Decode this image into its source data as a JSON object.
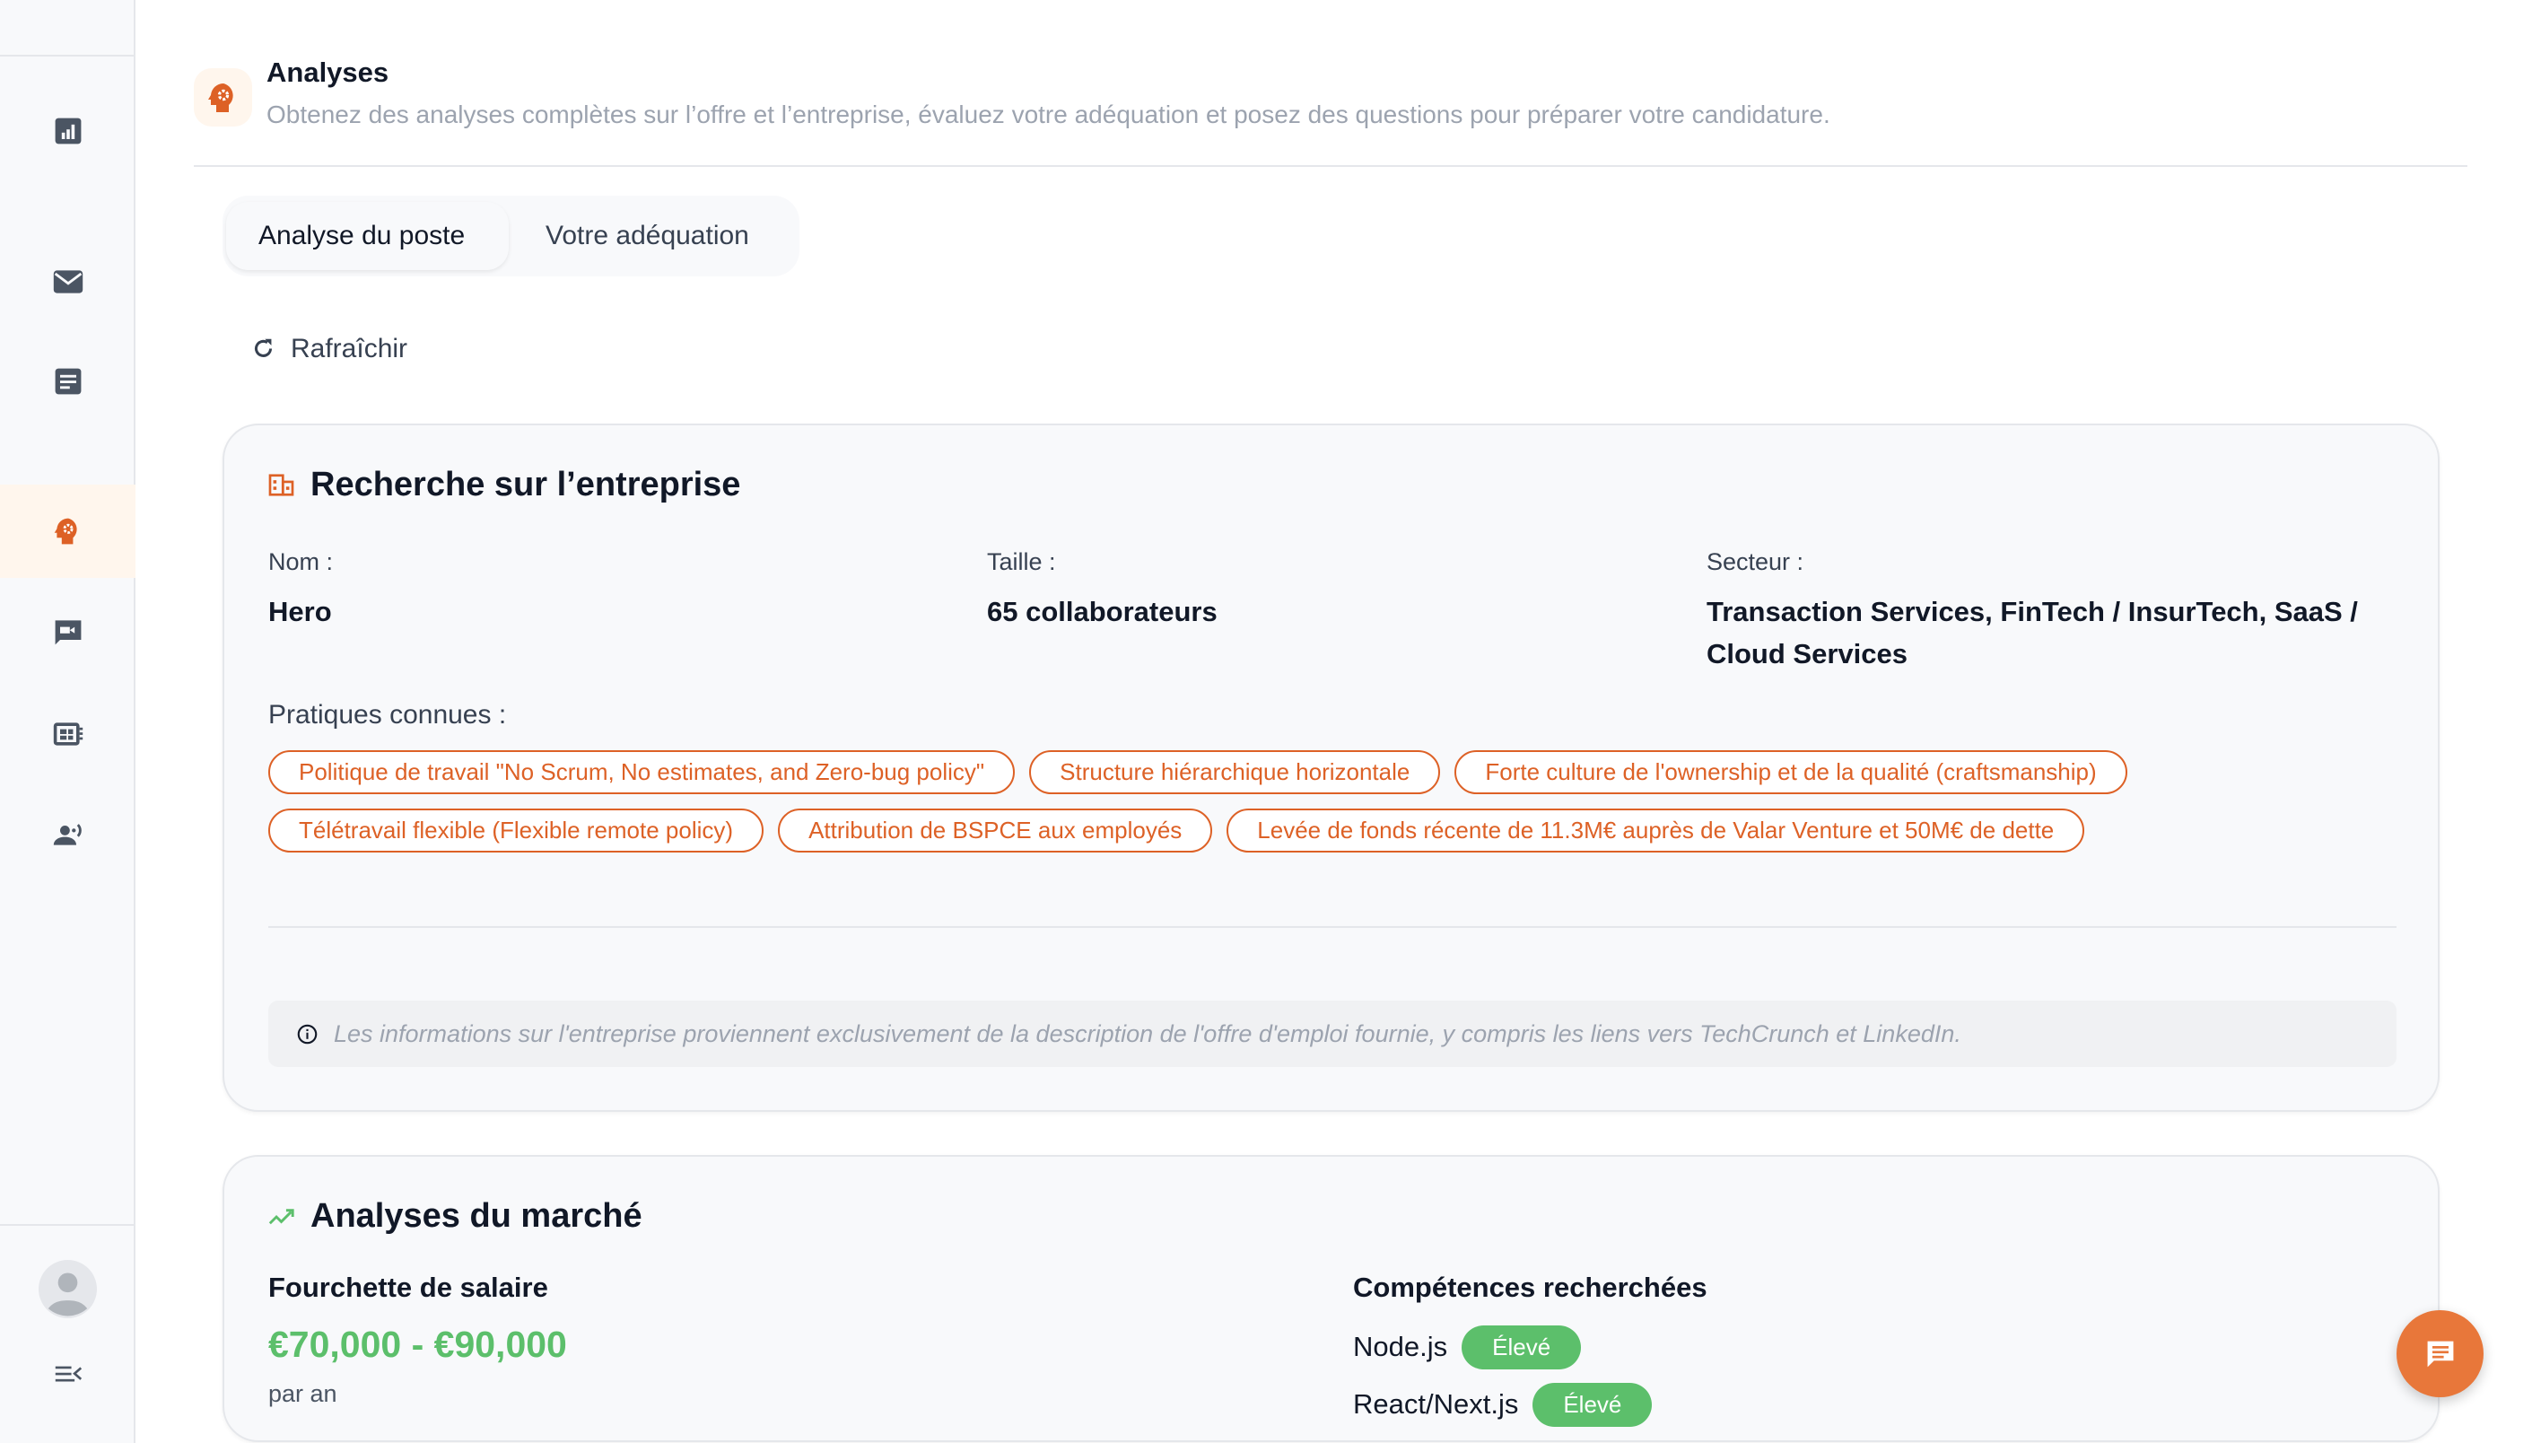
{
  "colors": {
    "accent": "#dd6126",
    "success": "#5cbf6b",
    "chat_button": "#e8773a"
  },
  "sidebar": {
    "items": [
      {
        "icon": "analytics-icon"
      },
      {
        "icon": "mail-icon"
      },
      {
        "icon": "document-icon"
      },
      {
        "icon": "psychology-icon",
        "active": true
      },
      {
        "icon": "video-chat-icon"
      },
      {
        "icon": "dashboard-icon"
      },
      {
        "icon": "voice-user-icon"
      }
    ],
    "avatar": "avatar-icon",
    "collapse": "menu-collapse-icon"
  },
  "header": {
    "icon": "psychology-icon",
    "title": "Analyses",
    "subtitle": "Obtenez des analyses complètes sur l’offre et l’entreprise, évaluez votre adéquation et posez des questions pour préparer votre candidature."
  },
  "tabs": [
    {
      "label": "Analyse du poste",
      "active": true
    },
    {
      "label": "Votre adéquation",
      "active": false
    }
  ],
  "refresh_label": "Rafraîchir",
  "company": {
    "title": "Recherche sur l’entreprise",
    "fields": [
      {
        "label": "Nom :",
        "value": "Hero"
      },
      {
        "label": "Taille :",
        "value": "65 collaborateurs"
      },
      {
        "label": "Secteur :",
        "value": "Transaction Services, FinTech / InsurTech, SaaS / Cloud Services"
      }
    ],
    "practices_label": "Pratiques connues :",
    "practices": [
      "Politique de travail \"No Scrum, No estimates, and Zero-bug policy\"",
      "Structure hiérarchique horizontale",
      "Forte culture de l'ownership et de la qualité (craftsmanship)",
      "Télétravail flexible (Flexible remote policy)",
      "Attribution de BSPCE aux employés",
      "Levée de fonds récente de 11.3M€ auprès de Valar Venture et 50M€ de dette"
    ],
    "note": "Les informations sur l'entreprise proviennent exclusivement de la description de l'offre d'emploi fournie, y compris les liens vers TechCrunch et LinkedIn."
  },
  "market": {
    "title": "Analyses du marché",
    "salary_title": "Fourchette de salaire",
    "salary": "€70,000 - €90,000",
    "salary_period": "par an",
    "skills_title": "Compétences recherchées",
    "skills": [
      {
        "name": "Node.js",
        "level": "Élevé"
      },
      {
        "name": "React/Next.js",
        "level": "Élevé"
      }
    ]
  }
}
